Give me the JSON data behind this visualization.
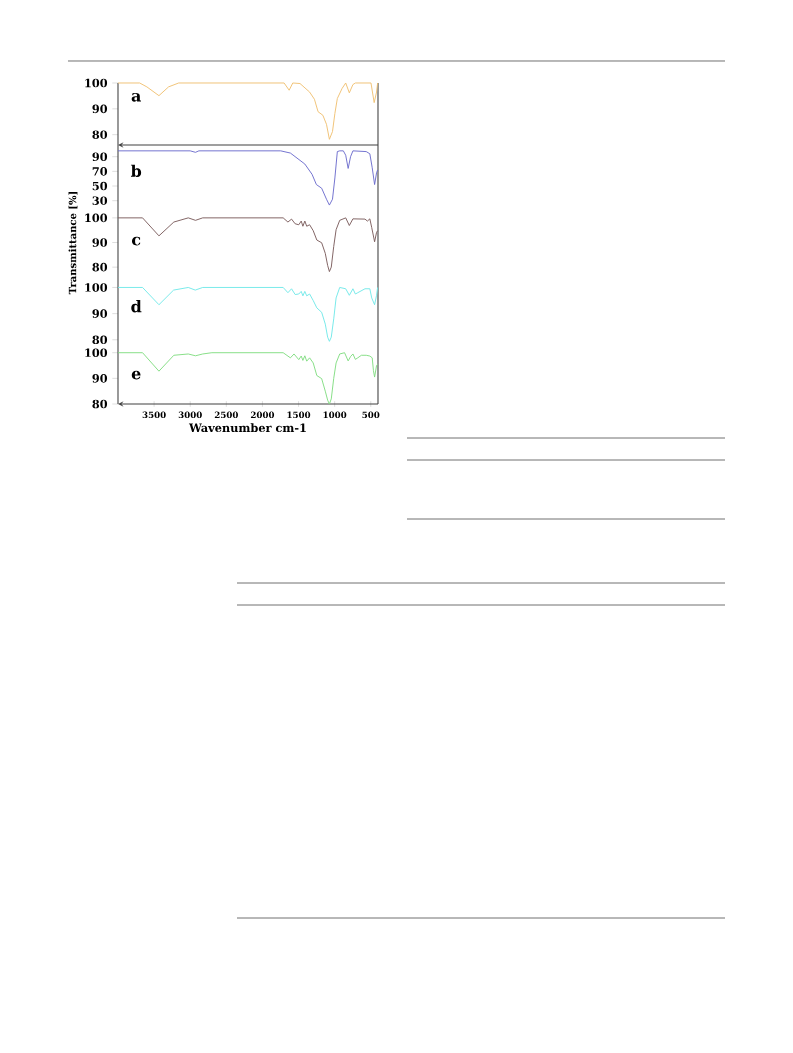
{
  "chart_data": [
    {
      "type": "line",
      "color": "#f0c070",
      "xlim": [
        4000,
        400
      ],
      "xticks": [
        3500,
        3000,
        2500,
        2000,
        1500,
        1000,
        500
      ],
      "ylim": [
        76,
        100
      ],
      "yticks": [
        80,
        90,
        100
      ],
      "tick_labels": "y",
      "annotations": [
        "a"
      ],
      "x": [
        4000,
        3700,
        3600,
        3433,
        3300,
        3160,
        1700,
        1630,
        1580,
        1480,
        1347,
        1280,
        1230,
        1163,
        1113,
        1073,
        1030,
        997,
        963,
        897,
        847,
        797,
        747,
        713,
        497,
        453,
        420,
        405
      ],
      "values": [
        100,
        100,
        98.5,
        95.1,
        98.5,
        100,
        100,
        97.2,
        100,
        99.8,
        96.5,
        93.7,
        88.9,
        87.5,
        84,
        78.2,
        81.2,
        88.2,
        94,
        97.9,
        100,
        96.2,
        99.4,
        100,
        100,
        92.4,
        96.5,
        100
      ]
    },
    {
      "type": "line",
      "color": "#6a6acc",
      "xlim": [
        4000,
        400
      ],
      "xticks": [
        3500,
        3000,
        2500,
        2000,
        1500,
        1000,
        500
      ],
      "ylim": [
        20,
        106
      ],
      "yticks": [
        30,
        50,
        70,
        90
      ],
      "tick_labels": "y",
      "annotations": [
        "b"
      ],
      "x": [
        4000,
        3000,
        2927,
        2880,
        1747,
        1613,
        1413,
        1313,
        1253,
        1180,
        1113,
        1073,
        1030,
        997,
        963,
        930,
        880,
        847,
        813,
        780,
        747,
        563,
        513,
        480,
        447,
        420,
        405
      ],
      "values": [
        98,
        98,
        96,
        98,
        98,
        95,
        80,
        66,
        52,
        47,
        32,
        24,
        32,
        61,
        97,
        98,
        98,
        92,
        74,
        90,
        98,
        97,
        94,
        75,
        52,
        68,
        72
      ]
    },
    {
      "type": "line",
      "color": "#7a5a5a",
      "xlim": [
        4000,
        400
      ],
      "xticks": [
        3500,
        3000,
        2500,
        2000,
        1500,
        1000,
        500
      ],
      "ylim": [
        76,
        104
      ],
      "yticks": [
        80,
        90,
        100
      ],
      "tick_labels": "y",
      "annotations": [
        "c"
      ],
      "ylabel": "Transmittance [%]",
      "x": [
        4000,
        3660,
        3433,
        3227,
        3027,
        2927,
        2827,
        1713,
        1647,
        1597,
        1547,
        1497,
        1463,
        1440,
        1413,
        1387,
        1347,
        1297,
        1247,
        1180,
        1130,
        1097,
        1073,
        1047,
        1013,
        980,
        930,
        847,
        797,
        747,
        580,
        547,
        513,
        487,
        447,
        420,
        405
      ],
      "values": [
        100,
        100,
        92.7,
        98.3,
        100,
        99,
        100,
        100,
        98.3,
        99.5,
        97.6,
        97.2,
        98.7,
        96.6,
        98.7,
        96.6,
        97.2,
        94.8,
        91,
        89.9,
        85.6,
        80.7,
        78.2,
        80,
        88.4,
        95.2,
        99,
        100,
        96.9,
        99.6,
        99.5,
        98.7,
        99.6,
        96.1,
        90.3,
        94.1,
        94.8
      ]
    },
    {
      "type": "line",
      "color": "#70e8e8",
      "xlim": [
        4000,
        400
      ],
      "xticks": [
        3500,
        3000,
        2500,
        2000,
        1500,
        1000,
        500
      ],
      "ylim": [
        78,
        104
      ],
      "yticks": [
        80,
        90,
        100
      ],
      "tick_labels": "y",
      "annotations": [
        "d"
      ],
      "x": [
        4000,
        3660,
        3433,
        3230,
        3027,
        2930,
        2827,
        1713,
        1647,
        1597,
        1547,
        1497,
        1463,
        1440,
        1413,
        1387,
        1347,
        1297,
        1247,
        1180,
        1130,
        1097,
        1073,
        1047,
        1013,
        980,
        930,
        847,
        797,
        747,
        713,
        680,
        580,
        513,
        487,
        447,
        420,
        405
      ],
      "values": [
        100,
        100,
        93.4,
        99,
        100,
        99,
        100,
        100,
        98,
        99.5,
        97.3,
        97.5,
        98.5,
        96.8,
        98.5,
        96.8,
        97.5,
        95,
        92.2,
        90.5,
        86,
        81,
        79.4,
        81,
        88,
        96,
        100,
        99.5,
        97,
        99.5,
        97.5,
        98,
        99.5,
        99.5,
        96,
        93.4,
        97,
        100
      ]
    },
    {
      "type": "line",
      "color": "#80dd80",
      "xlim": [
        4000,
        400
      ],
      "ylim": [
        80,
        103
      ],
      "yticks": [
        80,
        90,
        100
      ],
      "xticks": [
        3500,
        3000,
        2500,
        2000,
        1500,
        1000,
        500
      ],
      "annotations": [
        "e"
      ],
      "xlabel": "Wavenumber cm-1",
      "x": [
        4000,
        3660,
        3433,
        3227,
        3027,
        2927,
        2827,
        2700,
        1713,
        1613,
        1563,
        1497,
        1463,
        1440,
        1413,
        1387,
        1347,
        1297,
        1247,
        1180,
        1130,
        1097,
        1073,
        1047,
        1013,
        980,
        930,
        863,
        813,
        780,
        747,
        713,
        680,
        630,
        563,
        513,
        480,
        463,
        447,
        420,
        405
      ],
      "values": [
        100,
        100,
        92.8,
        99,
        99.5,
        98.8,
        99.5,
        100,
        100,
        98,
        99.5,
        97.3,
        98.7,
        97,
        98.8,
        96.7,
        98,
        96,
        91.1,
        89.9,
        85,
        81.5,
        80,
        82,
        90,
        96,
        99.5,
        100,
        96.8,
        98.5,
        99.5,
        97.4,
        98,
        99,
        99,
        98.7,
        98,
        93,
        90.5,
        95,
        95.5
      ]
    }
  ]
}
